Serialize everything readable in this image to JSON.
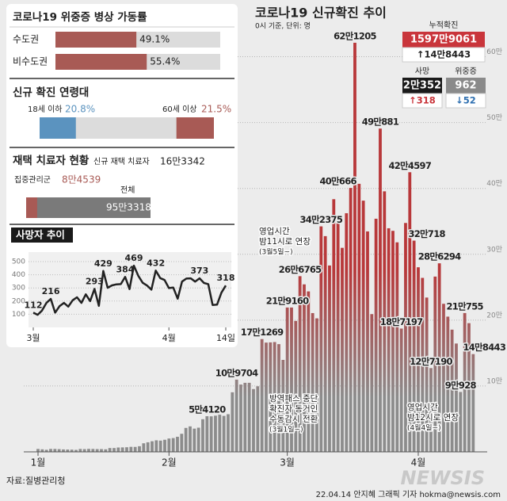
{
  "chart_data": [
    {
      "type": "bar",
      "title": "코로나19 신규확진 추이",
      "subtitle": "0시 기준, 단위: 명",
      "categories": [
        "1월",
        null,
        null,
        null,
        null,
        null,
        null,
        null,
        null,
        null,
        null,
        null,
        null,
        null,
        null,
        null,
        null,
        null,
        null,
        null,
        null,
        null,
        null,
        null,
        null,
        null,
        null,
        null,
        null,
        null,
        null,
        "2월",
        null,
        null,
        null,
        null,
        null,
        null,
        null,
        null,
        null,
        null,
        null,
        null,
        null,
        null,
        null,
        null,
        null,
        null,
        null,
        null,
        null,
        null,
        null,
        null,
        null,
        null,
        null,
        "3월",
        null,
        null,
        null,
        null,
        null,
        null,
        null,
        null,
        null,
        null,
        null,
        null,
        null,
        null,
        null,
        null,
        null,
        null,
        null,
        null,
        null,
        null,
        null,
        null,
        null,
        null,
        null,
        null,
        null,
        null,
        "4월",
        null,
        null,
        null,
        null,
        null,
        null,
        null,
        null,
        null,
        null,
        null,
        null,
        null
      ],
      "values": [
        4415,
        3833,
        3126,
        4442,
        4443,
        4126,
        3713,
        3511,
        3376,
        3005,
        4388,
        4167,
        4542,
        4423,
        4193,
        4194,
        3857,
        5804,
        5805,
        6603,
        6769,
        7009,
        7630,
        7513,
        8571,
        13012,
        14518,
        16096,
        17542,
        17079,
        18342,
        20270,
        20908,
        22907,
        27443,
        36362,
        38689,
        35286,
        36719,
        49567,
        54120,
        53926,
        54941,
        56431,
        54619,
        57177,
        90443,
        109704,
        102211,
        104829,
        104854,
        95362,
        99573,
        171269,
        165890,
        166209,
        166722,
        163566,
        139626,
        219160,
        219173,
        198799,
        266765,
        254327,
        243628,
        210716,
        202721,
        342375,
        327549,
        282987,
        383665,
        350190,
        309790,
        362338,
        400666,
        621205,
        407017,
        381454,
        334708,
        209169,
        353980,
        490881,
        395598,
        339514,
        335580,
        318130,
        187197,
        347554,
        424597,
        320718,
        280273,
        264171,
        234301,
        127190,
        266135,
        286294,
        224820,
        205333,
        185566,
        164481,
        90928,
        210755,
        195419,
        148443
      ],
      "value_labels": [
        null,
        null,
        null,
        null,
        null,
        null,
        null,
        null,
        null,
        null,
        null,
        null,
        null,
        null,
        null,
        null,
        null,
        null,
        null,
        null,
        null,
        null,
        null,
        null,
        null,
        null,
        null,
        null,
        null,
        null,
        null,
        null,
        null,
        null,
        null,
        null,
        null,
        null,
        null,
        null,
        "5만4120",
        null,
        null,
        null,
        null,
        null,
        null,
        "10만9704",
        null,
        null,
        null,
        null,
        null,
        "17만1269",
        null,
        null,
        null,
        null,
        null,
        "21만9160",
        null,
        null,
        "26만6765",
        null,
        null,
        null,
        null,
        "34만2375",
        null,
        null,
        null,
        null,
        null,
        null,
        "40만666",
        "62만1205",
        null,
        null,
        null,
        null,
        null,
        "49만881",
        null,
        null,
        null,
        null,
        "18만7197",
        null,
        "42만4597",
        "32만718",
        null,
        null,
        null,
        "12만7190",
        null,
        "28만6294",
        null,
        null,
        null,
        null,
        "9만928",
        "21만755",
        null,
        "14만8443"
      ],
      "color": "#b8383a",
      "base_color": "#8c8c8c",
      "ylim": [
        0,
        650000
      ],
      "yticks": [
        {
          "value": 100000,
          "label": "10만"
        },
        {
          "value": 200000,
          "label": "20만"
        },
        {
          "value": 300000,
          "label": "30만"
        },
        {
          "value": 400000,
          "label": "40만"
        },
        {
          "value": 500000,
          "label": "50만"
        },
        {
          "value": 600000,
          "label": "60만"
        }
      ],
      "grid": true,
      "annotations": [
        {
          "lines": [
            "영업시간",
            "밤11시로 연장",
            "(3월5일~)"
          ]
        },
        {
          "lines": [
            "방역패스 중단",
            "확진자 동거인",
            "수동감시 전환",
            "(3월1일~)"
          ]
        },
        {
          "lines": [
            "영업시간",
            "밤12시로 연장",
            "(4월4일~)"
          ]
        }
      ]
    },
    {
      "type": "line",
      "title": "사망자 추이",
      "categories": [
        "3월",
        null,
        null,
        null,
        null,
        null,
        null,
        null,
        null,
        null,
        null,
        null,
        null,
        null,
        null,
        null,
        null,
        null,
        null,
        null,
        null,
        null,
        null,
        null,
        null,
        null,
        null,
        null,
        null,
        null,
        null,
        "4월",
        null,
        null,
        null,
        null,
        null,
        null,
        null,
        null,
        null,
        null,
        null,
        null,
        "14일"
      ],
      "values": [
        112,
        96,
        128,
        186,
        216,
        112,
        161,
        186,
        158,
        206,
        229,
        186,
        251,
        200,
        293,
        164,
        429,
        301,
        319,
        327,
        329,
        384,
        291,
        469,
        393,
        339,
        318,
        287,
        432,
        375,
        360,
        299,
        303,
        218,
        348,
        371,
        373,
        348,
        373,
        338,
        329,
        170,
        173,
        264,
        318
      ],
      "value_labels": [
        112,
        null,
        null,
        null,
        216,
        null,
        null,
        null,
        null,
        null,
        null,
        null,
        null,
        null,
        293,
        null,
        429,
        null,
        null,
        null,
        null,
        384,
        null,
        469,
        null,
        null,
        null,
        null,
        432,
        null,
        null,
        null,
        null,
        null,
        null,
        null,
        null,
        null,
        373,
        null,
        null,
        null,
        null,
        null,
        318
      ],
      "color": "#222222",
      "ylim": [
        0,
        560
      ],
      "yticks": [
        100,
        200,
        300,
        400,
        500
      ],
      "grid": true
    },
    {
      "type": "hbar",
      "title": "코로나19 위중증 병상 가동률",
      "categories": [
        "수도권",
        "비수도권"
      ],
      "values": [
        49.1,
        55.4
      ],
      "value_labels": [
        "49.1%",
        "55.4%"
      ],
      "color": "#a85a55",
      "track_color": "#dcdcdc",
      "xlim": [
        0,
        100
      ]
    },
    {
      "type": "split",
      "title": "신규 확진 연령대",
      "categories": [
        "18세 이하",
        "60세 이상"
      ],
      "values": [
        20.8,
        21.5
      ],
      "value_labels": [
        "20.8%",
        "21.5%"
      ],
      "colors": [
        "#5b93bf",
        "#a85a55"
      ],
      "track_color": "#dcdcdc",
      "xlim": [
        0,
        100
      ]
    },
    {
      "type": "share",
      "title": "재택 치료자 현황",
      "new_label": "신규 재택 치료자",
      "new_value": 163342,
      "new_value_label": "16만3342",
      "categories": [
        "집중관리군",
        "전체"
      ],
      "values": [
        84539,
        953318
      ],
      "value_labels": [
        "8만4539",
        "95만3318"
      ],
      "colors": [
        "#a85a55",
        "#7a7a7a"
      ]
    }
  ],
  "stats": [
    {
      "label": "누적확진",
      "value": "1597만9061",
      "change": "↑14만8443",
      "color": "#c9353b",
      "change_color": "#222222"
    },
    {
      "label": "사망",
      "value": "2만352",
      "change": "↑318",
      "color": "#1a1a1a",
      "change_color": "#c9353b"
    },
    {
      "label": "위중증",
      "value": "962",
      "change": "↓52",
      "color": "#8a8a8a",
      "change_color": "#2e6fb0"
    }
  ],
  "source": "자료:질병관리청",
  "credit": "22.04.14 안지혜 그래픽 기자 hokma@newsis.com",
  "watermark": "NEWSIS"
}
